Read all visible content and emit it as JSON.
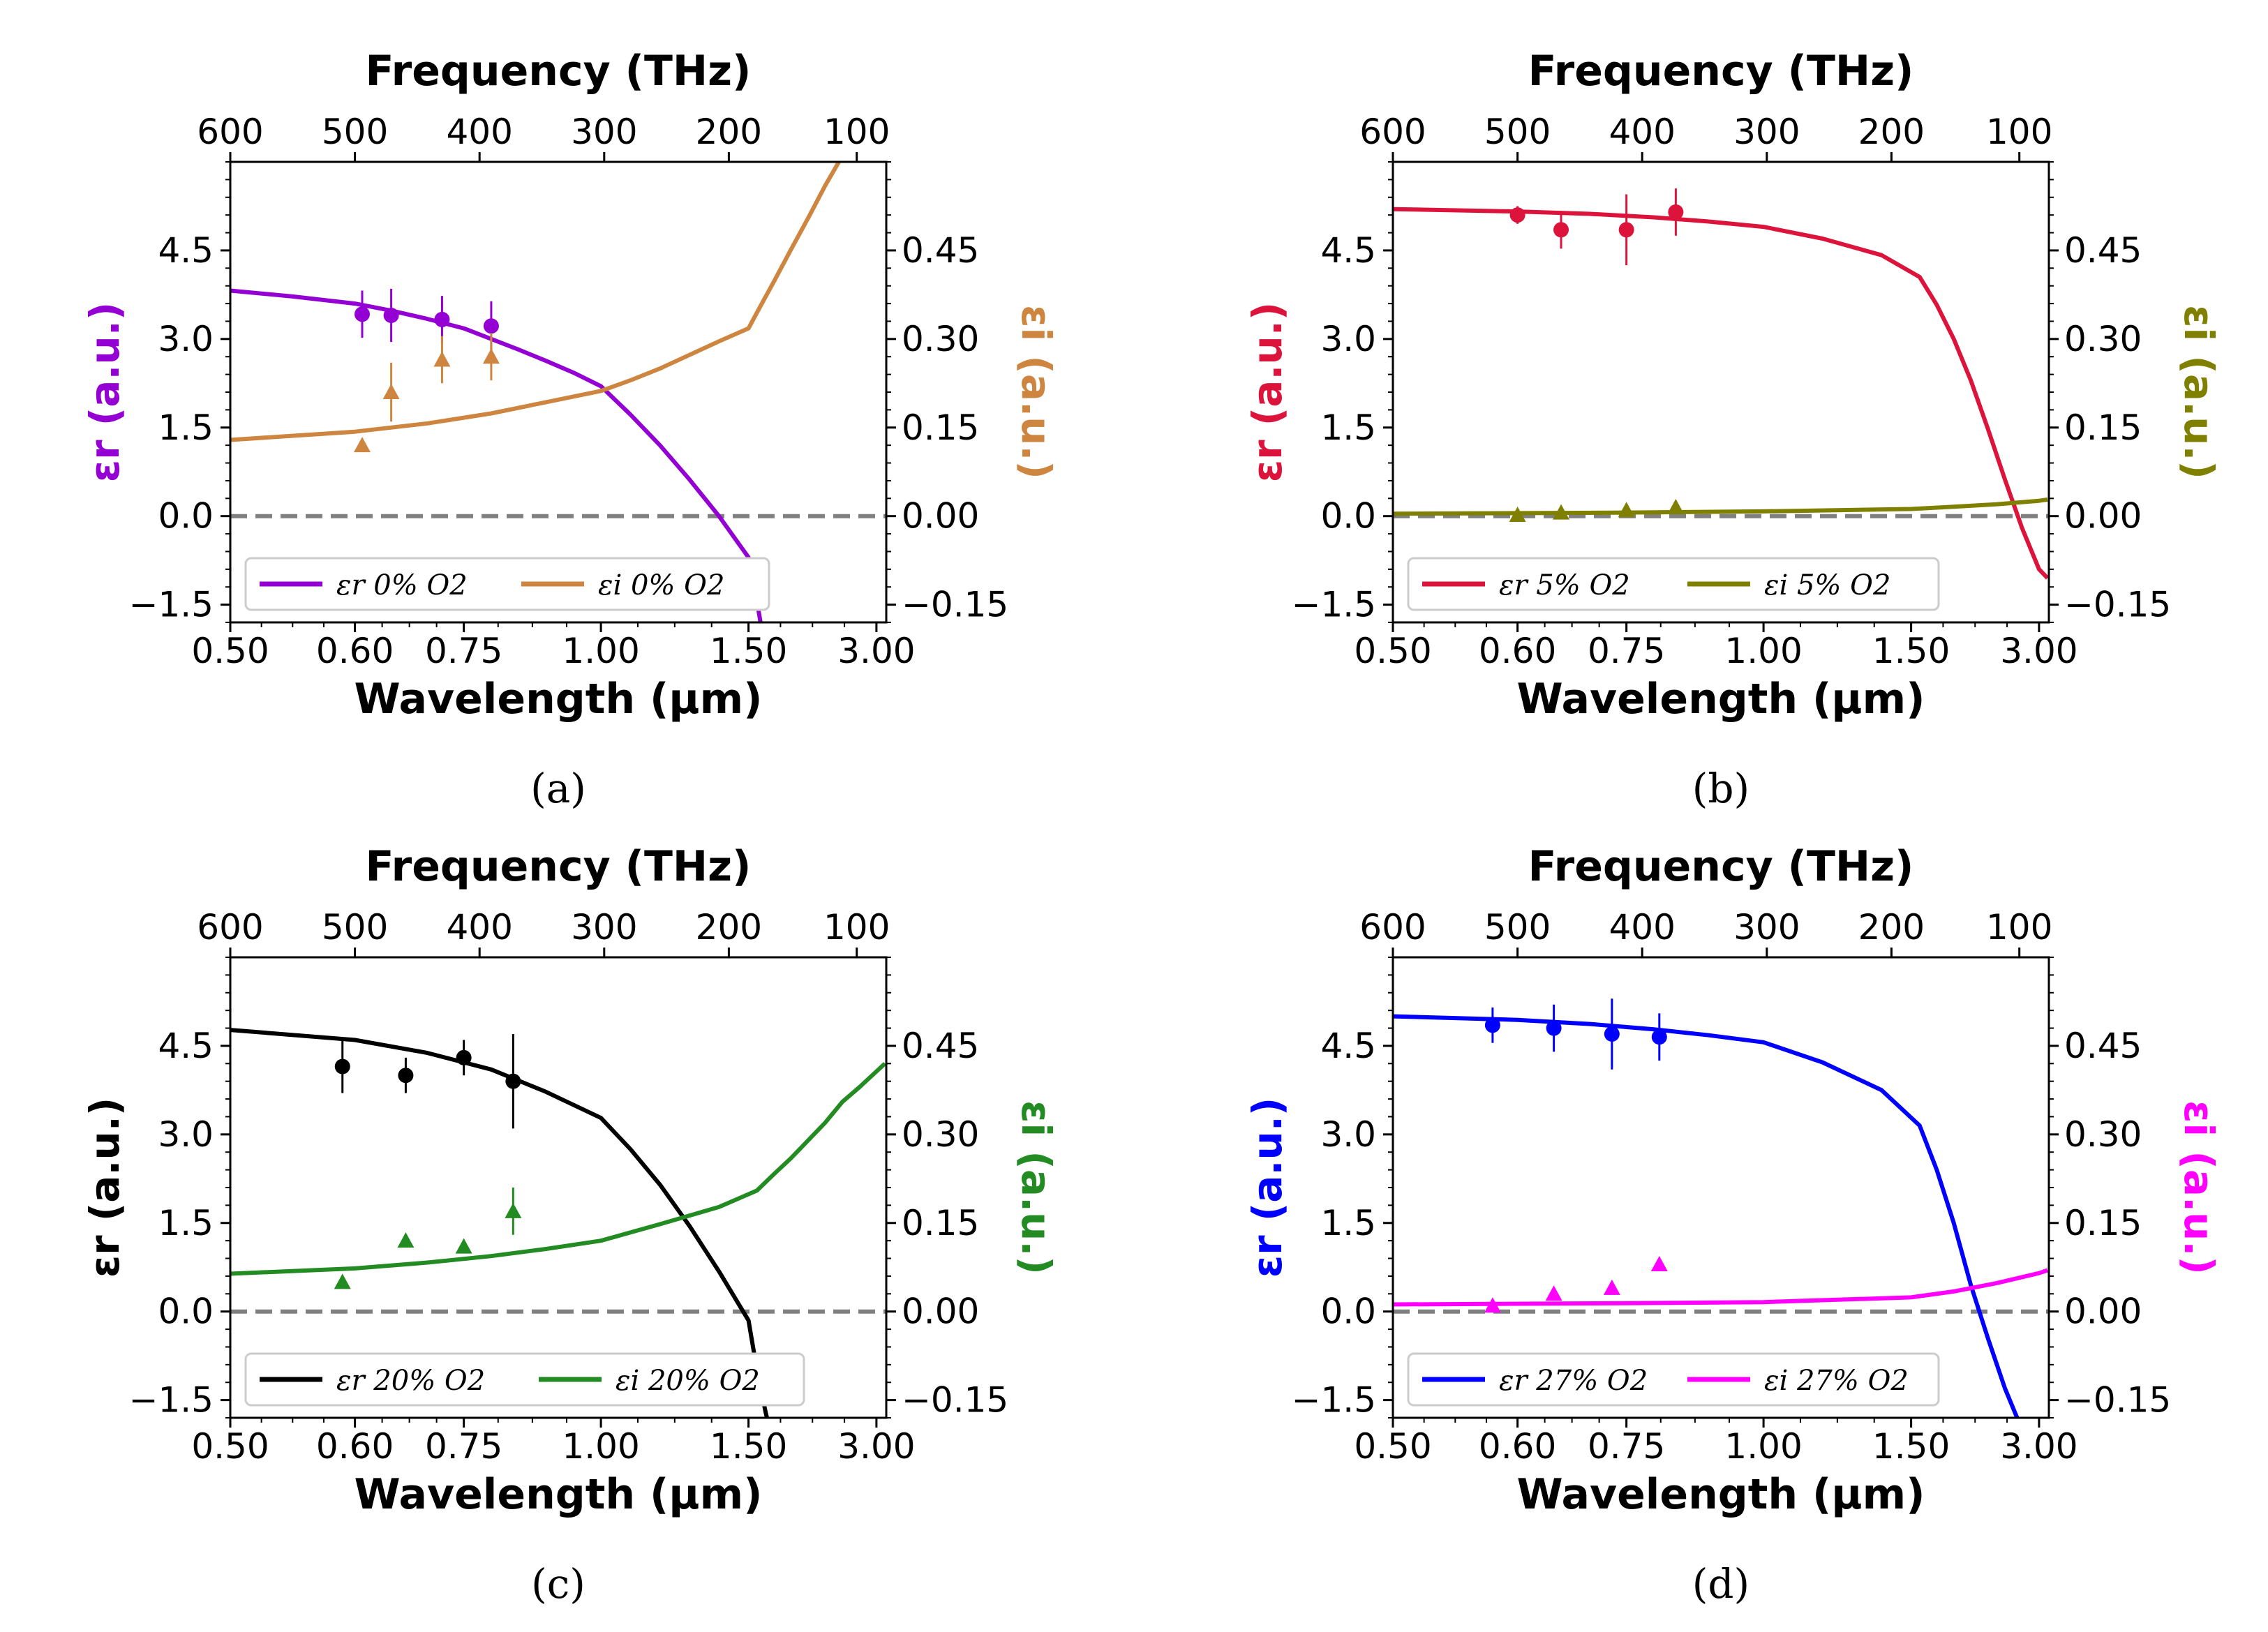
{
  "figure": {
    "panels": [
      {
        "caption": "(a)",
        "colors": {
          "er": "#9400D3",
          "ei": "#CD853F"
        },
        "title_top": "Frequency (THz)",
        "xlabel": "Wavelength (μm)",
        "ylabel_left": "εr (a.u.)",
        "ylabel_right": "εi (a.u.)",
        "legend_er": "εr 0% O2",
        "legend_ei": "εi 0% O2"
      },
      {
        "caption": "(b)",
        "colors": {
          "er": "#DC143C",
          "ei": "#808000"
        },
        "title_top": "Frequency (THz)",
        "xlabel": "Wavelength (μm)",
        "ylabel_left": "εr (a.u.)",
        "ylabel_right": "εi (a.u.)",
        "legend_er": "εr 5% O2",
        "legend_ei": "εi 5% O2"
      },
      {
        "caption": "(c)",
        "colors": {
          "er": "#000000",
          "ei": "#228B22"
        },
        "title_top": "Frequency (THz)",
        "xlabel": "Wavelength (μm)",
        "ylabel_left": "εr (a.u.)",
        "ylabel_right": "εi (a.u.)",
        "legend_er": "εr 20% O2",
        "legend_ei": "εi 20% O2"
      },
      {
        "caption": "(d)",
        "colors": {
          "er": "#0000FF",
          "ei": "#FF00FF"
        },
        "title_top": "Frequency (THz)",
        "xlabel": "Wavelength (μm)",
        "ylabel_left": "εr (a.u.)",
        "ylabel_right": "εi (a.u.)",
        "legend_er": "εr 27% O2",
        "legend_ei": "εi 27% O2"
      }
    ]
  },
  "chart_data": [
    {
      "type": "scatter",
      "title": "Frequency (THz)",
      "xlabel": "Wavelength (μm)",
      "ylabel": "εr (a.u.)",
      "ylabel_right": "εi (a.u.)",
      "x_ticks": [
        "0.50",
        "0.60",
        "0.75",
        "1.00",
        "1.50",
        "3.00"
      ],
      "top_ticks": [
        "600",
        "500",
        "400",
        "300",
        "200",
        "100"
      ],
      "yticks_left": [
        "−1.5",
        "0.0",
        "1.5",
        "3.0",
        "4.5"
      ],
      "yticks_right": [
        "−0.15",
        "0.00",
        "0.15",
        "0.30",
        "0.45"
      ],
      "ylim": [
        -1.8,
        6
      ],
      "ylim_right": [
        -0.18,
        0.6
      ],
      "series": [
        {
          "name": "εr 0% O2 (model)",
          "kind": "line",
          "axis": "left",
          "x": [
            0.5,
            0.55,
            0.6,
            0.65,
            0.7,
            0.75,
            0.8,
            0.85,
            0.9,
            0.95,
            1.0,
            1.1,
            1.2,
            1.3,
            1.4,
            1.5,
            1.6,
            1.7
          ],
          "y": [
            3.82,
            3.72,
            3.6,
            3.48,
            3.34,
            3.18,
            3.0,
            2.82,
            2.63,
            2.43,
            2.2,
            1.72,
            1.2,
            0.62,
            0.0,
            -0.7,
            -1.45,
            -2.3
          ]
        },
        {
          "name": "εi 0% O2 (model)",
          "kind": "line",
          "axis": "right",
          "x": [
            0.5,
            0.6,
            0.7,
            0.8,
            0.9,
            1.0,
            1.1,
            1.2,
            1.3,
            1.4,
            1.5,
            1.6,
            1.8,
            2.0,
            2.2,
            2.4,
            2.6,
            2.8
          ],
          "y": [
            0.129,
            0.143,
            0.157,
            0.174,
            0.193,
            0.212,
            0.23,
            0.25,
            0.273,
            0.296,
            0.318,
            0.345,
            0.398,
            0.452,
            0.505,
            0.56,
            0.61,
            0.65
          ]
        },
        {
          "name": "εr 0% O2 (data)",
          "kind": "points",
          "axis": "left",
          "x": [
            0.61,
            0.65,
            0.72,
            0.8
          ],
          "y": [
            3.42,
            3.4,
            3.33,
            3.22
          ],
          "err": [
            0.4,
            0.45,
            0.4,
            0.42
          ]
        },
        {
          "name": "εi 0% O2 (data)",
          "kind": "triangles",
          "axis": "right",
          "x": [
            0.61,
            0.65,
            0.72,
            0.8
          ],
          "y": [
            0.12,
            0.21,
            0.265,
            0.27
          ],
          "err": [
            0.0,
            0.05,
            0.04,
            0.04
          ]
        }
      ]
    },
    {
      "type": "scatter",
      "title": "Frequency (THz)",
      "xlabel": "Wavelength (μm)",
      "ylabel": "εr (a.u.)",
      "ylabel_right": "εi (a.u.)",
      "x_ticks": [
        "0.50",
        "0.60",
        "0.75",
        "1.00",
        "1.50",
        "3.00"
      ],
      "top_ticks": [
        "600",
        "500",
        "400",
        "300",
        "200",
        "100"
      ],
      "yticks_left": [
        "−1.5",
        "0.0",
        "1.5",
        "3.0",
        "4.5"
      ],
      "yticks_right": [
        "−0.15",
        "0.00",
        "0.15",
        "0.30",
        "0.45"
      ],
      "ylim": [
        -1.8,
        6
      ],
      "ylim_right": [
        -0.18,
        0.6
      ],
      "series": [
        {
          "name": "εr 5% O2 (model)",
          "kind": "line",
          "axis": "left",
          "x": [
            0.5,
            0.6,
            0.7,
            0.8,
            0.9,
            1.0,
            1.2,
            1.4,
            1.6,
            1.8,
            2.0,
            2.2,
            2.4,
            2.6,
            2.8,
            3.0,
            3.1
          ],
          "y": [
            5.2,
            5.16,
            5.12,
            5.06,
            4.99,
            4.9,
            4.7,
            4.42,
            4.05,
            3.58,
            3.0,
            2.3,
            1.48,
            0.62,
            -0.2,
            -0.9,
            -1.05
          ]
        },
        {
          "name": "εi 5% O2 (model)",
          "kind": "line",
          "axis": "right",
          "x": [
            0.5,
            0.75,
            1.0,
            1.5,
            2.0,
            2.5,
            3.0,
            3.1
          ],
          "y": [
            0.004,
            0.006,
            0.008,
            0.012,
            0.016,
            0.02,
            0.026,
            0.028
          ]
        },
        {
          "name": "εr 5% O2 (data)",
          "kind": "points",
          "axis": "left",
          "x": [
            0.6,
            0.66,
            0.75,
            0.84
          ],
          "y": [
            5.1,
            4.85,
            4.85,
            5.15
          ],
          "err": [
            0.15,
            0.32,
            0.6,
            0.4
          ]
        },
        {
          "name": "εi 5% O2 (data)",
          "kind": "triangles",
          "axis": "right",
          "x": [
            0.6,
            0.66,
            0.75,
            0.84
          ],
          "y": [
            0.002,
            0.006,
            0.01,
            0.015
          ],
          "err": [
            0,
            0,
            0,
            0
          ]
        }
      ]
    },
    {
      "type": "scatter",
      "title": "Frequency (THz)",
      "xlabel": "Wavelength (μm)",
      "ylabel": "εr (a.u.)",
      "ylabel_right": "εi (a.u.)",
      "x_ticks": [
        "0.50",
        "0.60",
        "0.75",
        "1.00",
        "1.50",
        "3.00"
      ],
      "top_ticks": [
        "600",
        "500",
        "400",
        "300",
        "200",
        "100"
      ],
      "yticks_left": [
        "−1.5",
        "0.0",
        "1.5",
        "3.0",
        "4.5"
      ],
      "yticks_right": [
        "−0.15",
        "0.00",
        "0.15",
        "0.30",
        "0.45"
      ],
      "ylim": [
        -1.8,
        6
      ],
      "ylim_right": [
        -0.18,
        0.6
      ],
      "series": [
        {
          "name": "εr 20% O2 (model)",
          "kind": "line",
          "axis": "left",
          "x": [
            0.5,
            0.6,
            0.7,
            0.8,
            0.9,
            1.0,
            1.1,
            1.2,
            1.3,
            1.4,
            1.5,
            1.6,
            1.7,
            1.8
          ],
          "y": [
            4.77,
            4.6,
            4.38,
            4.1,
            3.72,
            3.28,
            2.75,
            2.15,
            1.45,
            0.68,
            -0.15,
            -1.0,
            -1.7,
            -2.3
          ]
        },
        {
          "name": "εi 20% O2 (model)",
          "kind": "line",
          "axis": "right",
          "x": [
            0.5,
            0.6,
            0.7,
            0.8,
            0.9,
            1.0,
            1.2,
            1.4,
            1.6,
            1.8,
            2.0,
            2.2,
            2.4,
            2.6,
            2.8,
            3.1
          ],
          "y": [
            0.064,
            0.073,
            0.083,
            0.094,
            0.106,
            0.12,
            0.148,
            0.177,
            0.205,
            0.233,
            0.26,
            0.29,
            0.32,
            0.355,
            0.38,
            0.42
          ]
        },
        {
          "name": "εr 20% O2 (data)",
          "kind": "points",
          "axis": "left",
          "x": [
            0.59,
            0.67,
            0.75,
            0.84
          ],
          "y": [
            4.15,
            4.0,
            4.3,
            3.9
          ],
          "err": [
            0.45,
            0.3,
            0.3,
            0.8
          ]
        },
        {
          "name": "εi 20% O2 (data)",
          "kind": "triangles",
          "axis": "right",
          "x": [
            0.59,
            0.67,
            0.75,
            0.84
          ],
          "y": [
            0.05,
            0.12,
            0.11,
            0.17
          ],
          "err": [
            0,
            0,
            0,
            0.04
          ]
        }
      ]
    },
    {
      "type": "scatter",
      "title": "Frequency (THz)",
      "xlabel": "Wavelength (μm)",
      "ylabel": "εr (a.u.)",
      "ylabel_right": "εi (a.u.)",
      "x_ticks": [
        "0.50",
        "0.60",
        "0.75",
        "1.00",
        "1.50",
        "3.00"
      ],
      "top_ticks": [
        "600",
        "500",
        "400",
        "300",
        "200",
        "100"
      ],
      "yticks_left": [
        "−1.5",
        "0.0",
        "1.5",
        "3.0",
        "4.5"
      ],
      "yticks_right": [
        "−0.15",
        "0.00",
        "0.15",
        "0.30",
        "0.45"
      ],
      "ylim": [
        -1.8,
        6
      ],
      "ylim_right": [
        -0.18,
        0.6
      ],
      "series": [
        {
          "name": "εr 27% O2 (model)",
          "kind": "line",
          "axis": "left",
          "x": [
            0.5,
            0.6,
            0.7,
            0.8,
            0.9,
            1.0,
            1.2,
            1.4,
            1.6,
            1.8,
            2.0,
            2.2,
            2.4,
            2.6,
            2.8
          ],
          "y": [
            5.0,
            4.94,
            4.87,
            4.78,
            4.68,
            4.56,
            4.22,
            3.75,
            3.15,
            2.4,
            1.5,
            0.45,
            -0.45,
            -1.3,
            -2.0
          ]
        },
        {
          "name": "εi 27% O2 (model)",
          "kind": "line",
          "axis": "right",
          "x": [
            0.5,
            0.75,
            1.0,
            1.5,
            2.0,
            2.5,
            3.0,
            3.1
          ],
          "y": [
            0.012,
            0.014,
            0.016,
            0.024,
            0.034,
            0.048,
            0.065,
            0.07
          ]
        },
        {
          "name": "εr 27% O2 (data)",
          "kind": "points",
          "axis": "left",
          "x": [
            0.58,
            0.65,
            0.73,
            0.81
          ],
          "y": [
            4.85,
            4.8,
            4.7,
            4.65
          ],
          "err": [
            0.3,
            0.4,
            0.6,
            0.4
          ]
        },
        {
          "name": "εi 27% O2 (data)",
          "kind": "triangles",
          "axis": "right",
          "x": [
            0.58,
            0.65,
            0.73,
            0.81
          ],
          "y": [
            0.01,
            0.03,
            0.04,
            0.08
          ],
          "err": [
            0,
            0,
            0,
            0
          ]
        }
      ]
    }
  ]
}
